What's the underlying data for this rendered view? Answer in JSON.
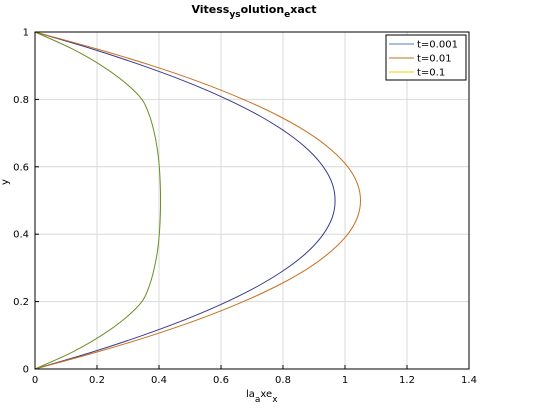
{
  "chart_data": {
    "type": "line",
    "title_main": "Vitess",
    "title_sub1": "ys",
    "title_mid": "olution",
    "title_sub2": "e",
    "title_end": "xact",
    "xlabel_main": "la",
    "xlabel_sub1": "a",
    "xlabel_mid": "xe",
    "xlabel_sub2": "x",
    "ylabel": "y",
    "xlim": [
      0,
      1.4
    ],
    "ylim": [
      0,
      1
    ],
    "xticks": [
      "0",
      "0.2",
      "0.4",
      "0.6",
      "0.8",
      "1",
      "1.2",
      "1.4"
    ],
    "yticks": [
      "0",
      "0.2",
      "0.4",
      "0.6",
      "0.8",
      "1"
    ],
    "grid": true,
    "legend_position": "top-right",
    "y": [
      0,
      0.05,
      0.1,
      0.15,
      0.2,
      0.25,
      0.3,
      0.35,
      0.4,
      0.45,
      0.5,
      0.55,
      0.6,
      0.65,
      0.7,
      0.75,
      0.8,
      0.85,
      0.9,
      0.95,
      1
    ],
    "series": [
      {
        "name": "t=0.001",
        "color": "#3a3a8c",
        "x": [
          0,
          0.184,
          0.348,
          0.494,
          0.62,
          0.727,
          0.814,
          0.882,
          0.93,
          0.959,
          0.968,
          0.959,
          0.93,
          0.882,
          0.814,
          0.727,
          0.62,
          0.494,
          0.348,
          0.184,
          0
        ]
      },
      {
        "name": "t=0.01",
        "color": "#c8701e",
        "x": [
          0,
          0.199,
          0.378,
          0.536,
          0.672,
          0.788,
          0.883,
          0.956,
          1.009,
          1.04,
          1.05,
          1.04,
          1.009,
          0.956,
          0.883,
          0.788,
          0.672,
          0.536,
          0.378,
          0.199,
          0
        ]
      },
      {
        "name": "t=0.1",
        "color": "#6b8e23",
        "x": [
          0,
          0.12,
          0.215,
          0.29,
          0.345,
          0.37,
          0.385,
          0.395,
          0.401,
          0.404,
          0.405,
          0.404,
          0.401,
          0.395,
          0.385,
          0.37,
          0.345,
          0.29,
          0.215,
          0.12,
          0
        ]
      }
    ],
    "legend_colors": [
      "#4a7fc1",
      "#c8701e",
      "#f0d000"
    ]
  }
}
